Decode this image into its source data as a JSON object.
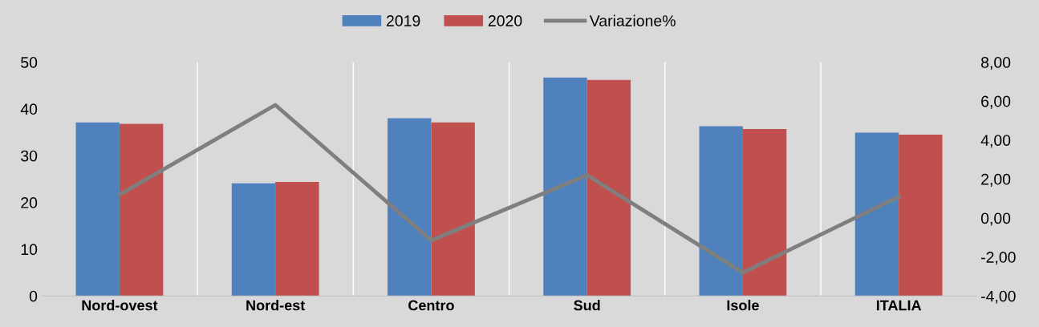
{
  "chart_data": {
    "type": "bar",
    "categories": [
      "Nord-ovest",
      "Nord-est",
      "Centro",
      "Sud",
      "Isole",
      "ITALIA"
    ],
    "series": [
      {
        "name": "2019",
        "color": "#4f81bd",
        "values": [
          37.1,
          24.1,
          38.0,
          46.7,
          36.3,
          34.9
        ]
      },
      {
        "name": "2020",
        "color": "#c0504d",
        "values": [
          36.8,
          24.4,
          37.1,
          46.2,
          35.7,
          34.5
        ]
      },
      {
        "name": "Variazione%",
        "color": "#7f7f7f",
        "type": "line",
        "axis": "y2",
        "values": [
          1.2,
          5.8,
          -1.15,
          2.2,
          -2.8,
          1.1
        ]
      }
    ],
    "ylim": [
      0,
      50
    ],
    "yticks": [
      0,
      10,
      20,
      30,
      40,
      50
    ],
    "y2lim": [
      -4,
      8
    ],
    "y2ticks": [
      {
        "value": -4,
        "label": "-4,00"
      },
      {
        "value": -2,
        "label": "-2,00"
      },
      {
        "value": 0,
        "label": "0,00"
      },
      {
        "value": 2,
        "label": "2,00"
      },
      {
        "value": 4,
        "label": "4,00"
      },
      {
        "value": 6,
        "label": "6,00"
      },
      {
        "value": 8,
        "label": "8,00"
      }
    ],
    "grid": "x",
    "legend": "top",
    "marker": "none",
    "line_style": "solid"
  }
}
